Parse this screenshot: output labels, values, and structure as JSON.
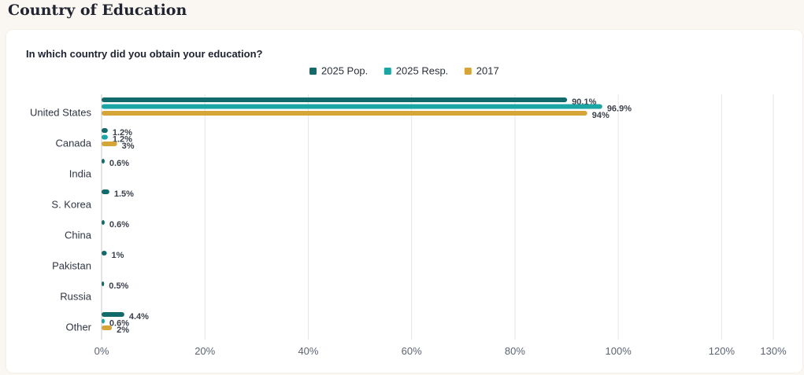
{
  "page": {
    "title": "Country of Education"
  },
  "chart_data": {
    "type": "bar",
    "orientation": "horizontal",
    "title": "In which country did you obtain your education?",
    "categories": [
      "United States",
      "Canada",
      "India",
      "S. Korea",
      "China",
      "Pakistan",
      "Russia",
      "Other"
    ],
    "series": [
      {
        "name": "2025 Pop.",
        "color": "#116b6b",
        "values": [
          90.1,
          1.2,
          0.6,
          1.5,
          0.6,
          1,
          0.5,
          4.4
        ],
        "labels": [
          "90.1%",
          "1.2%",
          "0.6%",
          "1.5%",
          "0.6%",
          "1%",
          "0.5%",
          "4.4%"
        ]
      },
      {
        "name": "2025 Resp.",
        "color": "#1ba5a5",
        "values": [
          96.9,
          1.2,
          null,
          null,
          null,
          null,
          null,
          0.6
        ],
        "labels": [
          "96.9%",
          "1.2%",
          "",
          "",
          "",
          "",
          "",
          "0.6%"
        ]
      },
      {
        "name": "2017",
        "color": "#d5a637",
        "values": [
          94,
          3,
          null,
          null,
          null,
          null,
          null,
          2
        ],
        "labels": [
          "94%",
          "3%",
          "",
          "",
          "",
          "",
          "",
          "2%"
        ]
      }
    ],
    "xticks": [
      0,
      20,
      40,
      60,
      80,
      100,
      120,
      130
    ],
    "xtick_labels": [
      "0%",
      "20%",
      "40%",
      "60%",
      "80%",
      "100%",
      "120%",
      "130%"
    ],
    "xlim": [
      0,
      130
    ],
    "grid": true,
    "legend": "top-center"
  }
}
